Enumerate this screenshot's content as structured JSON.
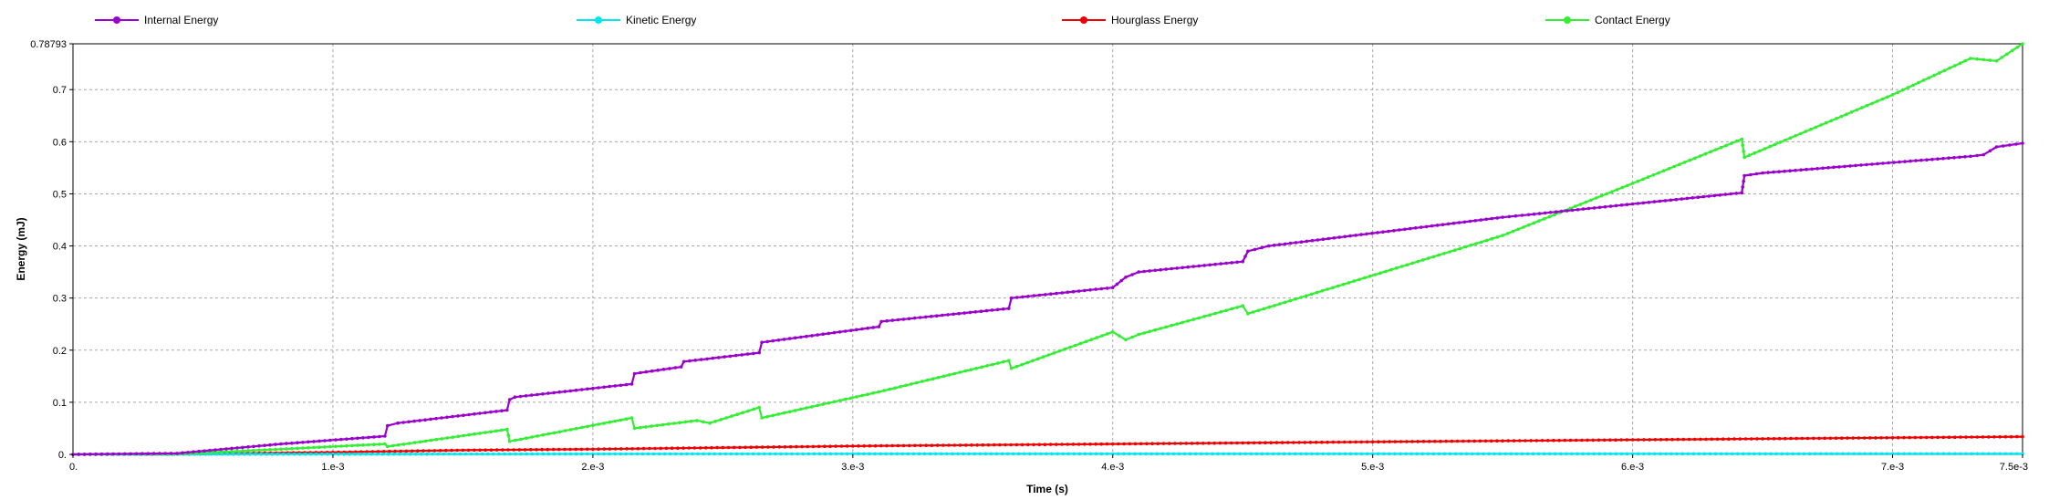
{
  "chart_data": {
    "type": "line",
    "xlabel": "Time (s)",
    "ylabel": "Energy (mJ)",
    "xlim": [
      0,
      0.0075
    ],
    "ylim": [
      0,
      0.78793
    ],
    "x_ticks": [
      {
        "value": 0,
        "label": "0."
      },
      {
        "value": 0.001,
        "label": "1.e-3"
      },
      {
        "value": 0.002,
        "label": "2.e-3"
      },
      {
        "value": 0.003,
        "label": "3.e-3"
      },
      {
        "value": 0.004,
        "label": "4.e-3"
      },
      {
        "value": 0.005,
        "label": "5.e-3"
      },
      {
        "value": 0.006,
        "label": "6.e-3"
      },
      {
        "value": 0.007,
        "label": "7.e-3"
      },
      {
        "value": 0.0075,
        "label": "7.5e-3"
      }
    ],
    "y_ticks": [
      {
        "value": 0,
        "label": "0."
      },
      {
        "value": 0.1,
        "label": "0.1"
      },
      {
        "value": 0.2,
        "label": "0.2"
      },
      {
        "value": 0.3,
        "label": "0.3"
      },
      {
        "value": 0.4,
        "label": "0.4"
      },
      {
        "value": 0.5,
        "label": "0.5"
      },
      {
        "value": 0.6,
        "label": "0.6"
      },
      {
        "value": 0.7,
        "label": "0.7"
      },
      {
        "value": 0.78793,
        "label": "0.78793"
      }
    ],
    "grid": true,
    "legend_position": "top",
    "series": [
      {
        "name": "Internal Energy",
        "color": "#9900cc",
        "x": [
          0,
          0.0004,
          0.0008,
          0.0012,
          0.00121,
          0.00125,
          0.00167,
          0.00168,
          0.0017,
          0.00215,
          0.00216,
          0.00234,
          0.00235,
          0.00264,
          0.00265,
          0.0031,
          0.00311,
          0.0036,
          0.00361,
          0.004,
          0.00405,
          0.0041,
          0.0045,
          0.00452,
          0.0046,
          0.0055,
          0.0056,
          0.00642,
          0.00643,
          0.0065,
          0.0073,
          0.00735,
          0.0074,
          0.0075
        ],
        "y": [
          0,
          0.002,
          0.02,
          0.035,
          0.055,
          0.06,
          0.085,
          0.105,
          0.11,
          0.135,
          0.155,
          0.168,
          0.178,
          0.195,
          0.215,
          0.245,
          0.255,
          0.28,
          0.3,
          0.32,
          0.34,
          0.35,
          0.37,
          0.39,
          0.4,
          0.455,
          0.46,
          0.502,
          0.535,
          0.54,
          0.572,
          0.575,
          0.59,
          0.597
        ]
      },
      {
        "name": "Kinetic Energy",
        "color": "#00e5ee",
        "x": [
          0,
          0.001,
          0.002,
          0.003,
          0.004,
          0.005,
          0.006,
          0.007,
          0.0075
        ],
        "y": [
          0,
          0.0005,
          0.0008,
          0.001,
          0.001,
          0.001,
          0.001,
          0.0012,
          0.0012
        ]
      },
      {
        "name": "Hourglass Energy",
        "color": "#ee0000",
        "x": [
          0,
          0.0005,
          0.001,
          0.0015,
          0.002,
          0.0025,
          0.003,
          0.0035,
          0.004,
          0.0045,
          0.005,
          0.0055,
          0.006,
          0.0065,
          0.007,
          0.0075
        ],
        "y": [
          0,
          0.001,
          0.004,
          0.008,
          0.01,
          0.013,
          0.016,
          0.018,
          0.02,
          0.022,
          0.024,
          0.026,
          0.028,
          0.03,
          0.032,
          0.034
        ]
      },
      {
        "name": "Contact Energy",
        "color": "#33ee33",
        "x": [
          0,
          0.0004,
          0.0008,
          0.0012,
          0.00121,
          0.00167,
          0.00168,
          0.00215,
          0.00216,
          0.0024,
          0.00245,
          0.00264,
          0.00265,
          0.0031,
          0.0036,
          0.00361,
          0.004,
          0.00405,
          0.0041,
          0.0045,
          0.00452,
          0.0055,
          0.006,
          0.00642,
          0.00643,
          0.007,
          0.0073,
          0.0074,
          0.0075
        ],
        "y": [
          0,
          0.001,
          0.01,
          0.02,
          0.015,
          0.048,
          0.025,
          0.07,
          0.05,
          0.065,
          0.06,
          0.09,
          0.07,
          0.12,
          0.18,
          0.165,
          0.235,
          0.22,
          0.23,
          0.285,
          0.27,
          0.42,
          0.52,
          0.605,
          0.57,
          0.69,
          0.76,
          0.755,
          0.78793
        ]
      }
    ]
  }
}
